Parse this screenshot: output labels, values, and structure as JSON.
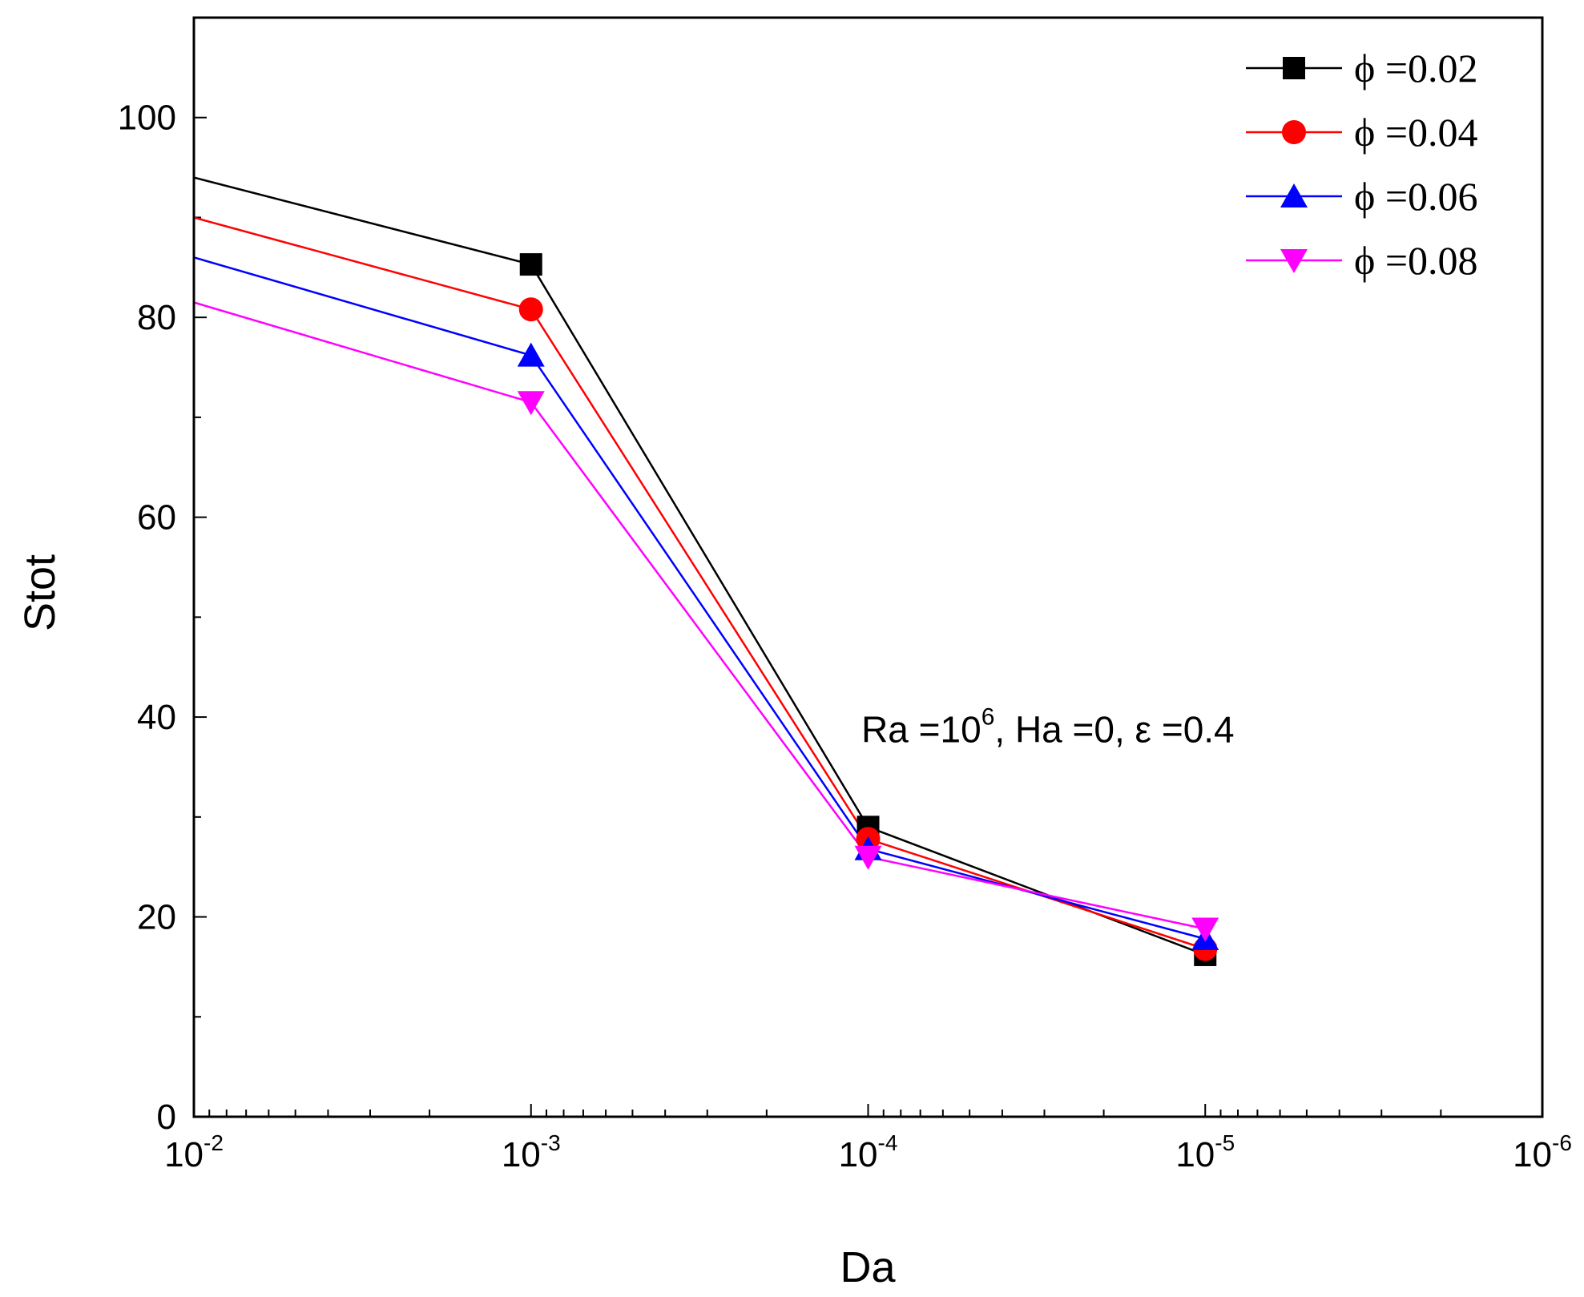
{
  "chart_data": {
    "type": "line",
    "xscale": "log-reversed",
    "xlabel": "Da",
    "ylabel": "Stot",
    "xlim_exp": [
      -2,
      -6
    ],
    "ylim": [
      0,
      110
    ],
    "yticks": [
      0,
      20,
      40,
      60,
      80,
      100
    ],
    "xtick_exponents": [
      -2,
      -3,
      -4,
      -5,
      -6
    ],
    "xtick_labels": [
      {
        "base": "10",
        "exp": "-2"
      },
      {
        "base": "10",
        "exp": "-3"
      },
      {
        "base": "10",
        "exp": "-4"
      },
      {
        "base": "10",
        "exp": "-5"
      },
      {
        "base": "10",
        "exp": "-6"
      }
    ],
    "annotation": {
      "prefix": "Ra =10",
      "sup": "6",
      "suffix": ", Ha =0, ε =0.4",
      "anchor_x_exp": -3.98,
      "anchor_y": 37.5
    },
    "series": [
      {
        "name": "ϕ =0.02",
        "color": "#000000",
        "marker": "square",
        "x_exp": [
          -2,
          -3,
          -4,
          -5
        ],
        "values": [
          94,
          85.3,
          29,
          16.2
        ],
        "marked": [
          false,
          true,
          true,
          true
        ]
      },
      {
        "name": "ϕ =0.04",
        "color": "#ff0000",
        "marker": "circle",
        "x_exp": [
          -2,
          -3,
          -4,
          -5
        ],
        "values": [
          90,
          80.8,
          27.8,
          16.8
        ],
        "marked": [
          false,
          true,
          true,
          true
        ]
      },
      {
        "name": "ϕ =0.06",
        "color": "#0000ff",
        "marker": "triangle-up",
        "x_exp": [
          -2,
          -3,
          -4,
          -5
        ],
        "values": [
          86,
          76.2,
          26.8,
          17.8
        ],
        "marked": [
          false,
          true,
          true,
          true
        ]
      },
      {
        "name": "ϕ =0.08",
        "color": "#ff00ff",
        "marker": "triangle-down",
        "x_exp": [
          -2,
          -3,
          -4,
          -5
        ],
        "values": [
          81.5,
          71.5,
          26,
          18.8
        ],
        "marked": [
          false,
          true,
          true,
          true
        ]
      }
    ],
    "legend_position": "top-right"
  }
}
